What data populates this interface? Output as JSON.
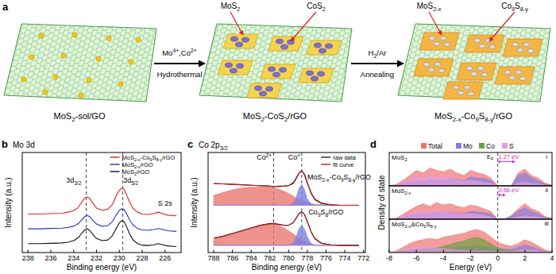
{
  "schematic": {
    "panel": "a",
    "stages": [
      {
        "label": "MoS2-sol/GO"
      },
      {
        "label": "MoS2-CoS2/rGO",
        "callouts": [
          "MoS2",
          "CoS2"
        ]
      },
      {
        "label": "MoS2-x-Co9S8-y/rGO",
        "callouts": [
          "MoS2-x",
          "Co9S8-y"
        ]
      }
    ],
    "steps": [
      {
        "above": "Mo4+,Co2+",
        "below": "Hydrothermal"
      },
      {
        "above": "H2/Ar",
        "below": "Annealing"
      }
    ]
  },
  "chart_data": [
    {
      "panel": "b",
      "type": "line",
      "title": "Mo 3d",
      "x_label": "Binding energy (eV)",
      "y_label": "Intensity (a.u.)",
      "xlim": [
        238.5,
        224.6
      ],
      "xticks": [
        238,
        236,
        234,
        232,
        230,
        228,
        226
      ],
      "ylim": [
        0,
        13.5
      ],
      "tick_labels": "x",
      "legend": "upper right",
      "vlines": [
        232.9,
        229.7
      ],
      "x": [
        238,
        237,
        236,
        235,
        234.5,
        234,
        233.6,
        233.3,
        233.0,
        232.8,
        232.6,
        232.3,
        232.0,
        231.5,
        231.0,
        230.6,
        230.3,
        230.0,
        229.8,
        229.6,
        229.4,
        229.1,
        228.8,
        228.4,
        228.0,
        227.5,
        227.0,
        226.6,
        226.2,
        225.8,
        225.0
      ],
      "series": [
        {
          "name": "MoS2-x-Co9S8-y/rGO",
          "color": "#e0201b",
          "values": [
            5.2,
            5.2,
            5.25,
            5.3,
            5.45,
            5.65,
            6.1,
            6.8,
            7.4,
            7.5,
            7.3,
            6.6,
            6.0,
            5.7,
            5.85,
            6.5,
            7.6,
            8.4,
            8.7,
            8.55,
            7.9,
            6.8,
            5.95,
            5.45,
            5.2,
            5.15,
            5.25,
            5.45,
            5.25,
            5.05,
            4.95
          ]
        },
        {
          "name": "MoS2-x/rGO",
          "color": "#2030d0",
          "values": [
            3.2,
            3.2,
            3.25,
            3.3,
            3.4,
            3.55,
            3.9,
            4.4,
            4.9,
            5.0,
            4.85,
            4.3,
            3.85,
            3.55,
            3.65,
            4.2,
            5.0,
            5.7,
            5.9,
            5.8,
            5.3,
            4.4,
            3.7,
            3.25,
            3.05,
            3.0,
            3.1,
            3.25,
            3.1,
            2.95,
            2.85
          ]
        },
        {
          "name": "MoS2/rGO",
          "color": "#111111",
          "values": [
            1.2,
            1.2,
            1.25,
            1.3,
            1.4,
            1.6,
            2.0,
            2.6,
            3.1,
            3.2,
            3.0,
            2.4,
            1.9,
            1.6,
            1.7,
            2.3,
            3.2,
            4.0,
            4.3,
            4.2,
            3.6,
            2.5,
            1.7,
            1.2,
            1.0,
            0.95,
            1.05,
            1.2,
            1.05,
            0.9,
            0.8
          ]
        }
      ],
      "annotations": [
        {
          "text": "3d3/2",
          "x": 234.0,
          "y": 9.4
        },
        {
          "text": "3d5/2",
          "x": 229.0,
          "y": 9.4
        },
        {
          "text": "S 2s",
          "x": 226.0,
          "y": 6.3
        }
      ]
    },
    {
      "panel": "c",
      "type": "line",
      "title": "Co 2p3/2",
      "x_label": "Binding energy (eV)",
      "y_label": "Intensity (a.u.)",
      "xlim": [
        788.6,
        771.8
      ],
      "xticks": [
        788,
        786,
        784,
        782,
        780,
        778,
        776,
        774,
        772
      ],
      "ylim": [
        0,
        11
      ],
      "tick_labels": "x",
      "legend": "upper right",
      "vlines": [
        781.6,
        778.6
      ],
      "x": [
        788,
        787,
        786,
        785,
        784,
        783,
        782,
        781.5,
        781,
        780.5,
        780,
        779.5,
        779.2,
        778.9,
        778.6,
        778.3,
        778,
        777.6,
        777.2,
        776.5,
        775.5,
        774.5,
        773.5,
        772.5
      ],
      "series": [
        {
          "name": "raw data",
          "color": "#222222",
          "values": [
            7.6,
            7.55,
            7.5,
            7.45,
            7.4,
            7.35,
            7.3,
            7.25,
            7.3,
            7.3,
            7.35,
            7.6,
            8.1,
            8.7,
            9.0,
            8.6,
            7.7,
            6.5,
            5.8,
            5.4,
            5.25,
            5.2,
            5.2,
            5.2
          ]
        },
        {
          "name": "fit curve",
          "color": "#b22222",
          "values": [
            7.6,
            7.55,
            7.5,
            7.45,
            7.4,
            7.35,
            7.3,
            7.25,
            7.25,
            7.3,
            7.35,
            7.7,
            8.2,
            8.75,
            9.0,
            8.5,
            7.6,
            6.6,
            5.9,
            5.45,
            5.25,
            5.2,
            5.2,
            5.2
          ]
        },
        {
          "type": "area",
          "color": "#e8776f",
          "values": [
            6.3,
            6.6,
            6.9,
            7.1,
            7.2,
            7.25,
            7.2,
            7.1,
            6.95,
            6.75,
            6.5,
            6.2,
            6.0,
            5.85,
            5.7,
            5.6,
            5.5,
            5.4,
            5.3,
            5.25,
            5.2,
            5.2,
            5.2,
            5.2
          ]
        },
        {
          "type": "area",
          "color": "#7a80e0",
          "values": [
            5.2,
            5.2,
            5.2,
            5.2,
            5.2,
            5.2,
            5.2,
            5.2,
            5.2,
            5.2,
            5.2,
            5.4,
            6.0,
            7.0,
            7.5,
            6.9,
            5.9,
            5.35,
            5.2,
            5.2,
            5.2,
            5.2,
            5.2,
            5.2
          ]
        },
        {
          "color": "#222222",
          "values": [
            1.6,
            1.8,
            2.1,
            2.4,
            2.7,
            3.0,
            3.2,
            3.2,
            3.1,
            3.0,
            3.0,
            3.3,
            3.8,
            4.3,
            4.5,
            4.2,
            3.4,
            2.3,
            1.5,
            1.0,
            0.85,
            0.8,
            0.8,
            0.8
          ]
        },
        {
          "color": "#b22222",
          "values": [
            1.6,
            1.8,
            2.1,
            2.4,
            2.7,
            3.0,
            3.15,
            3.15,
            3.05,
            3.0,
            3.0,
            3.3,
            3.75,
            4.25,
            4.45,
            4.15,
            3.4,
            2.3,
            1.55,
            1.05,
            0.85,
            0.8,
            0.8,
            0.8
          ]
        },
        {
          "type": "area",
          "color": "#e8776f",
          "values": [
            1.5,
            1.75,
            2.05,
            2.35,
            2.65,
            2.95,
            3.1,
            3.1,
            2.95,
            2.7,
            2.4,
            2.05,
            1.8,
            1.6,
            1.4,
            1.25,
            1.1,
            0.95,
            0.85,
            0.8,
            0.8,
            0.8,
            0.8,
            0.8
          ]
        },
        {
          "type": "area",
          "color": "#7a80e0",
          "values": [
            0.8,
            0.8,
            0.8,
            0.8,
            0.8,
            0.8,
            0.8,
            0.8,
            0.8,
            0.8,
            0.8,
            1.0,
            1.7,
            2.6,
            3.0,
            2.6,
            1.7,
            1.0,
            0.8,
            0.8,
            0.8,
            0.8,
            0.8,
            0.8
          ]
        }
      ],
      "annotations": [
        {
          "text": "Co2+",
          "x": 782.6,
          "y": 10.2
        },
        {
          "text": "Co+",
          "x": 779.4,
          "y": 10.2
        },
        {
          "text": "MoS2-x-Co9S8-y/rGO",
          "x": 774.6,
          "y": 8.0
        },
        {
          "text": "Co9S8/rGO",
          "x": 776.0,
          "y": 4.2
        }
      ]
    },
    {
      "panel": "d",
      "type": "area",
      "title": "MoS2",
      "xlim": [
        -8,
        4
      ],
      "ylim": [
        0,
        13
      ],
      "tick_labels": false,
      "legend": "top",
      "vlines": [
        0
      ],
      "x": [
        -8,
        -7.5,
        -7,
        -6.5,
        -6,
        -5.5,
        -5,
        -4.5,
        -4,
        -3.5,
        -3,
        -2.5,
        -2,
        -1.5,
        -1,
        -0.5,
        0,
        0.5,
        1,
        1.5,
        2,
        2.5,
        3,
        3.5,
        4
      ],
      "series": [
        {
          "name": "Total",
          "color": "#f07070",
          "values": [
            0,
            0.5,
            2,
            4,
            6,
            5,
            7,
            6,
            5.5,
            6.5,
            5,
            4,
            6,
            5,
            4.5,
            3,
            0,
            0,
            0,
            5,
            6.5,
            4,
            3,
            1,
            0.3
          ]
        },
        {
          "name": "Mo",
          "color": "#8080e0",
          "values": [
            0,
            0.2,
            0.8,
            1.5,
            2,
            1.8,
            2.5,
            2.2,
            2,
            3,
            2.5,
            2,
            3.5,
            3,
            3,
            2,
            0,
            0,
            0,
            4,
            5,
            3,
            2,
            0.6,
            0.2
          ]
        },
        {
          "name": "Co",
          "color": "#70a040",
          "values": [
            0,
            0,
            0,
            0,
            0,
            0,
            0,
            0,
            0,
            0,
            0,
            0,
            0,
            0,
            0,
            0,
            0,
            0,
            0,
            0,
            0,
            0,
            0,
            0,
            0
          ]
        },
        {
          "name": "S",
          "color": "#e0a0e0",
          "values": [
            0,
            0.3,
            1.2,
            2.4,
            3.8,
            3,
            4,
            3.5,
            3.2,
            3.2,
            2.3,
            1.8,
            2.2,
            1.8,
            1.3,
            0.9,
            0,
            0,
            0,
            1,
            1.4,
            0.9,
            0.8,
            0.3,
            0.1
          ]
        }
      ],
      "annotations": [
        {
          "text": "EF",
          "x": -0.55,
          "y": 10.5
        },
        {
          "text": "1.27 eV",
          "x": 0.8,
          "y": 10.5,
          "span": [
            0,
            1.27
          ]
        },
        {
          "text": "i",
          "x": 3.6,
          "y": 10.5
        }
      ]
    },
    {
      "type": "area",
      "title": "MoS2-x",
      "y_label": "Density of state",
      "xlim": [
        -8,
        4
      ],
      "ylim": [
        0,
        13
      ],
      "tick_labels": false,
      "vlines": [
        0
      ],
      "x": [
        -8,
        -7.5,
        -7,
        -6.5,
        -6,
        -5.5,
        -5,
        -4.5,
        -4,
        -3.5,
        -3,
        -2.5,
        -2,
        -1.5,
        -1,
        -0.5,
        0,
        0.5,
        1,
        1.5,
        2,
        2.5,
        3,
        3.5,
        4
      ],
      "series": [
        {
          "color": "#f07070",
          "values": [
            0,
            0.4,
            1.8,
            3.5,
            5,
            6,
            5,
            6.5,
            5.5,
            6,
            5,
            4.5,
            5.5,
            5,
            4,
            3,
            0,
            0,
            1.5,
            4,
            6,
            4,
            3,
            1,
            0.3
          ]
        },
        {
          "color": "#8080e0",
          "values": [
            0,
            0.2,
            0.7,
            1.4,
            2,
            2.5,
            2,
            2.8,
            2.3,
            2.8,
            2.5,
            2.2,
            3,
            2.8,
            2.5,
            2,
            0,
            0,
            1.2,
            3.2,
            4.5,
            3,
            2,
            0.6,
            0.2
          ]
        },
        {
          "color": "#70a040",
          "values": [
            0,
            0,
            0,
            0,
            0,
            0,
            0,
            0,
            0,
            0,
            0,
            0,
            0,
            0,
            0,
            0,
            0,
            0,
            0,
            0,
            0,
            0,
            0,
            0,
            0
          ]
        },
        {
          "color": "#e0a0e0",
          "values": [
            0,
            0.2,
            1,
            2,
            2.8,
            3.2,
            2.7,
            3.3,
            2.8,
            2.8,
            2.2,
            2,
            2.2,
            1.9,
            1.3,
            0.9,
            0,
            0,
            0.3,
            0.8,
            1.3,
            0.9,
            0.8,
            0.3,
            0.1
          ]
        }
      ],
      "annotations": [
        {
          "text": "0.56 eV",
          "x": 0.8,
          "y": 10.5,
          "span": [
            0,
            0.56
          ]
        },
        {
          "text": "ii",
          "x": 3.6,
          "y": 10.5
        }
      ]
    },
    {
      "type": "area",
      "title": "MoS2-x&Co9S8-y",
      "x_label": "Energy (eV)",
      "xlim": [
        -8,
        4
      ],
      "ylim": [
        0,
        13
      ],
      "xticks": [
        -8,
        -6,
        -4,
        -2,
        0,
        2,
        4
      ],
      "tick_labels": "x",
      "vlines": [
        0
      ],
      "x": [
        -8,
        -7.5,
        -7,
        -6.5,
        -6,
        -5.5,
        -5,
        -4.5,
        -4,
        -3.5,
        -3,
        -2.5,
        -2,
        -1.5,
        -1,
        -0.5,
        0,
        0.5,
        1,
        1.5,
        2,
        2.5,
        3,
        3.5,
        4
      ],
      "series": [
        {
          "color": "#f07070",
          "values": [
            0,
            0.6,
            2,
            3.5,
            4.5,
            5,
            5.5,
            5,
            6,
            6.5,
            7,
            7.5,
            8.5,
            9,
            8,
            6,
            4,
            3,
            2.5,
            3.5,
            5,
            4,
            2.5,
            1,
            0.3
          ]
        },
        {
          "color": "#8080e0",
          "values": [
            0,
            0.2,
            0.6,
            1,
            1.3,
            1.5,
            1.8,
            1.6,
            1.8,
            2,
            2,
            2.2,
            2.5,
            2.5,
            2.3,
            2,
            1.6,
            1.4,
            1.2,
            2,
            3,
            2.2,
            1.3,
            0.5,
            0.1
          ]
        },
        {
          "color": "#70a040",
          "values": [
            0,
            0.1,
            0.3,
            0.6,
            0.9,
            1.2,
            1.5,
            1.8,
            2.5,
            3.2,
            4,
            4.5,
            5.5,
            6,
            5,
            3.5,
            1.8,
            1,
            0.8,
            0.6,
            0.7,
            0.6,
            0.4,
            0.2,
            0.1
          ]
        },
        {
          "color": "#e0a0e0",
          "values": [
            0,
            0.3,
            1,
            1.6,
            2,
            2.2,
            2,
            1.6,
            1.5,
            1.2,
            1,
            0.8,
            0.7,
            0.6,
            0.6,
            0.5,
            0.5,
            0.5,
            0.5,
            0.8,
            1.2,
            1,
            0.7,
            0.3,
            0.1
          ]
        }
      ],
      "annotations": [
        {
          "text": "iii",
          "x": 3.6,
          "y": 10.5
        }
      ]
    }
  ]
}
